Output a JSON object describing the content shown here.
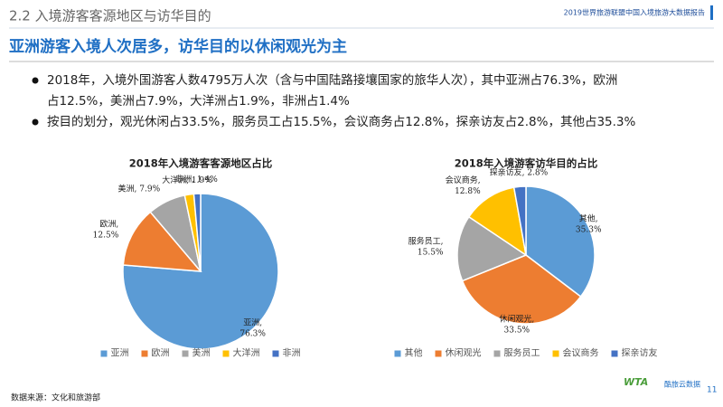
{
  "header": {
    "section": "2.2 入境游客客源地区与访华目的",
    "report": "2019世界旅游联盟中国入境旅游大数据报告",
    "headline": "亚洲游客入境人次居多，访华目的以休闲观光为主"
  },
  "bullets": [
    "2018年，入境外国游客人数4795万人次（含与中国陆路接壤国家的旅华人次），其中亚洲占76.3%，欧洲",
    "占12.5%，美洲占7.9%，大洋洲占1.9%，非洲占1.4%",
    "按目的划分，观光休闲占33.5%，服务员工占15.5%，会议商务占12.8%，探亲访友占2.8%，其他占35.3%"
  ],
  "chart_data": [
    {
      "type": "pie",
      "title": "2018年入境游客客源地区占比",
      "categories": [
        "亚洲",
        "欧洲",
        "美洲",
        "大洋洲",
        "非洲"
      ],
      "values": [
        76.3,
        12.5,
        7.9,
        1.9,
        1.4
      ],
      "value_labels": [
        "亚洲,\n76.3%",
        "欧洲,\n12.5%",
        "美洲, 7.9%",
        "大洋洲, 1.9%",
        "非洲, 1.4%"
      ],
      "colors": [
        "#5b9bd5",
        "#ed7d31",
        "#a5a5a5",
        "#ffc000",
        "#4472c4"
      ],
      "legend": "bottom"
    },
    {
      "type": "pie",
      "title": "2018年入境游客访华目的占比",
      "categories": [
        "其他",
        "休闲观光",
        "服务员工",
        "会议商务",
        "探亲访友"
      ],
      "values": [
        35.3,
        33.5,
        15.5,
        12.8,
        2.8
      ],
      "value_labels": [
        "其他,\n35.3%",
        "休闲观光,\n33.5%",
        "服务员工,\n15.5%",
        "会议商务,\n12.8%",
        "探亲访友, 2.8%"
      ],
      "colors": [
        "#5b9bd5",
        "#ed7d31",
        "#a5a5a5",
        "#ffc000",
        "#4472c4"
      ],
      "legend": "bottom"
    }
  ],
  "footer": {
    "source": "数据来源：文化和旅游部",
    "logo_1": "WTA",
    "logo_2": "酷旅云数据",
    "page": "11"
  }
}
